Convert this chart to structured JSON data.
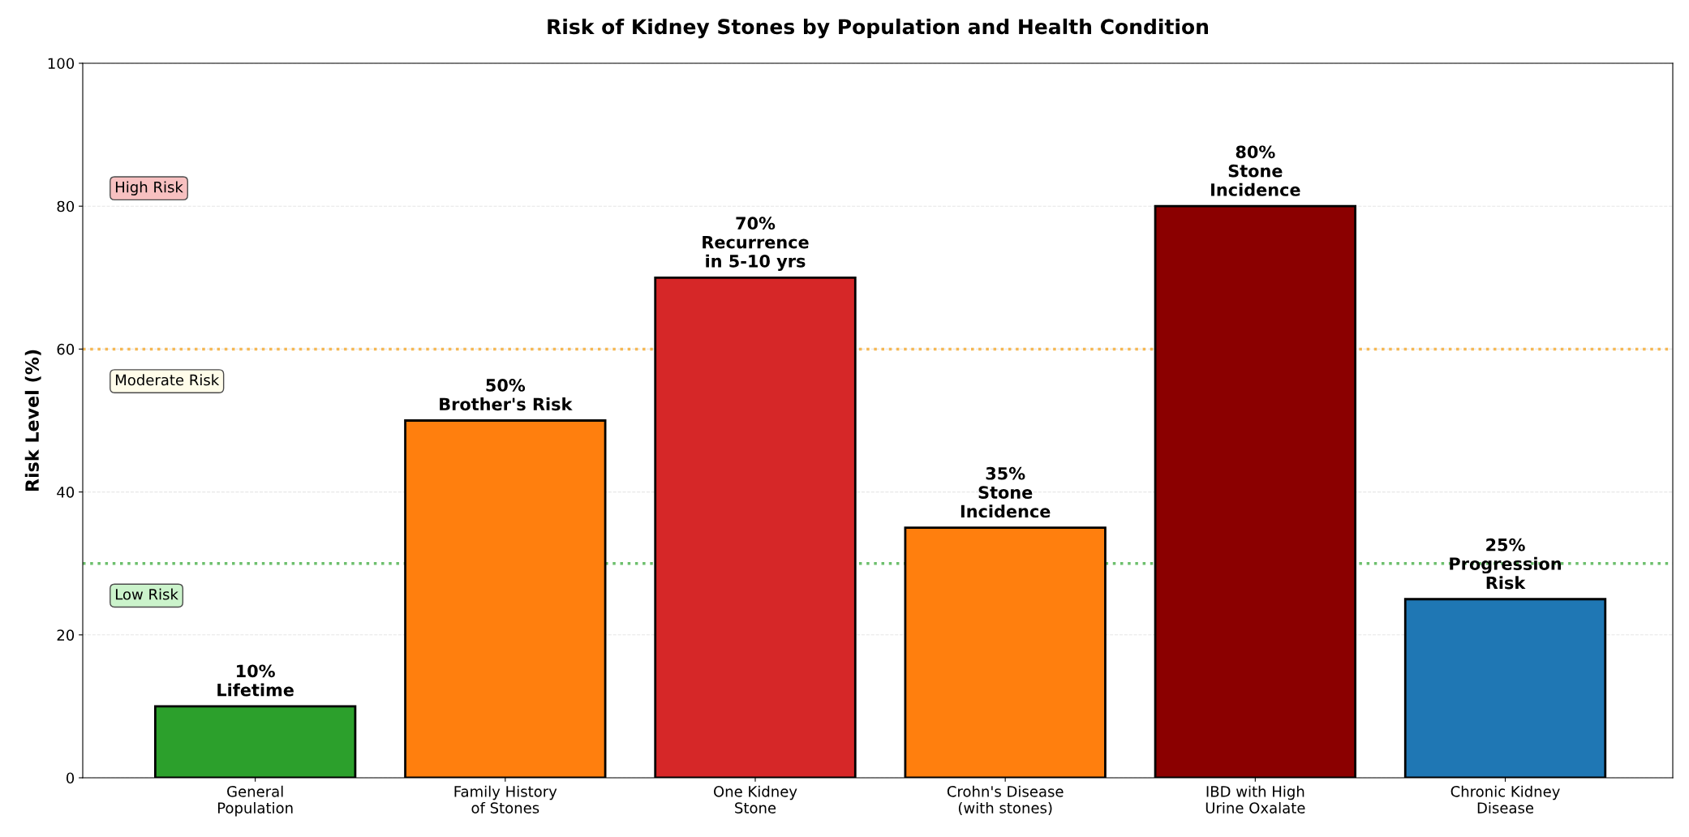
{
  "chart_data": {
    "type": "bar",
    "title": "Risk of Kidney Stones by Population and Health Condition",
    "ylabel": "Risk Level (%)",
    "categories": [
      "General\nPopulation",
      "Family History\nof Stones",
      "One Kidney\nStone",
      "Crohn's Disease\n(with stones)",
      "IBD with High\nUrine Oxalate",
      "Chronic Kidney\nDisease"
    ],
    "values": [
      10,
      50,
      70,
      35,
      80,
      25
    ],
    "colors": [
      "#2ca02c",
      "#ff7f0e",
      "#d62728",
      "#ff7f0e",
      "#8b0000",
      "#1f77b4"
    ],
    "value_labels": [
      "10%\nLifetime",
      "50%\nBrother's Risk",
      "70%\nRecurrence\nin 5-10 yrs",
      "35%\nStone\nIncidence",
      "80%\nStone\nIncidence",
      "25%\nProgression\nRisk"
    ],
    "ylim": [
      0,
      100
    ],
    "yticks": [
      0,
      20,
      40,
      60,
      80,
      100
    ],
    "grid": "y",
    "ref_lines": [
      {
        "axis": "y",
        "value": 60,
        "color": "#f5b041",
        "line_style": "dotted"
      },
      {
        "axis": "y",
        "value": 30,
        "color": "#5cb85c",
        "line_style": "dotted"
      }
    ],
    "annotations": [
      "High Risk",
      "Moderate Risk",
      "Low Risk"
    ]
  }
}
